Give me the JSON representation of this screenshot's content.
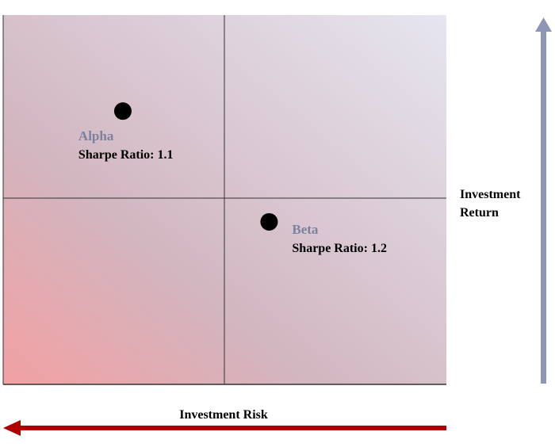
{
  "chart_data": {
    "type": "scatter",
    "title": "",
    "xlabel": "Investment Risk",
    "ylabel_lines": [
      "Investment",
      "Return"
    ],
    "grid": "quadrant",
    "points": [
      {
        "name": "Alpha",
        "metric": "Sharpe Ratio: 1.1",
        "x": 0.27,
        "y": 0.74
      },
      {
        "name": "Beta",
        "metric": "Sharpe Ratio: 1.2",
        "x": 0.6,
        "y": 0.44
      }
    ]
  },
  "colors": {
    "risk_arrow": "#b00000",
    "return_arrow": "#8c97b3",
    "gradient_start": "#f2a0a2",
    "gradient_mid": "#d2b6c0",
    "gradient_end": "#e6e6f0",
    "point": "#000000",
    "point_name": "#7a82a0"
  }
}
